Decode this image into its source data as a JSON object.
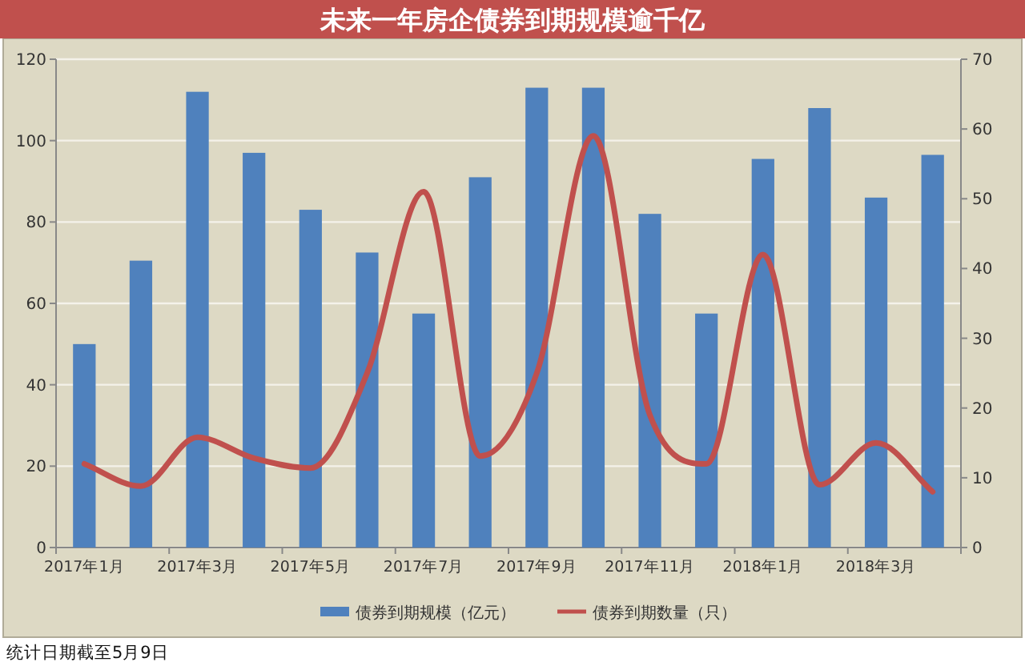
{
  "chart_data": {
    "type": "bar",
    "title": "未来一年房企债券到期规模逾千亿",
    "categories": [
      "2017年1月",
      null,
      "2017年3月",
      null,
      "2017年5月",
      null,
      "2017年7月",
      null,
      "2017年9月",
      null,
      "2017年11月",
      null,
      "2018年1月",
      null,
      "2018年3月",
      null
    ],
    "series": [
      {
        "name": "债券到期规模（亿元）",
        "color": "#4f81bd",
        "values": [
          50,
          70.5,
          112,
          97,
          83,
          72.5,
          57.5,
          91,
          113,
          113,
          82,
          57.5,
          95.5,
          108,
          86,
          96.5
        ]
      },
      {
        "name": "债券到期数量（只）",
        "type": "line",
        "axis": "y2",
        "color": "#c0504d",
        "values": [
          12,
          8.8,
          15.8,
          12.8,
          11.4,
          25,
          51,
          13.1,
          25,
          59,
          19,
          12,
          42,
          9,
          15,
          8
        ]
      }
    ],
    "ylim": [
      0,
      120
    ],
    "yticks": [
      0,
      20,
      40,
      60,
      80,
      100,
      120
    ],
    "y2lim": [
      0,
      70
    ],
    "y2ticks": [
      0,
      10,
      20,
      30,
      40,
      50,
      60,
      70
    ],
    "grid": "y",
    "legend": "bottom",
    "marker": "none",
    "line_style": "solid",
    "annotations": [
      "统计日期截至5月9日"
    ]
  }
}
